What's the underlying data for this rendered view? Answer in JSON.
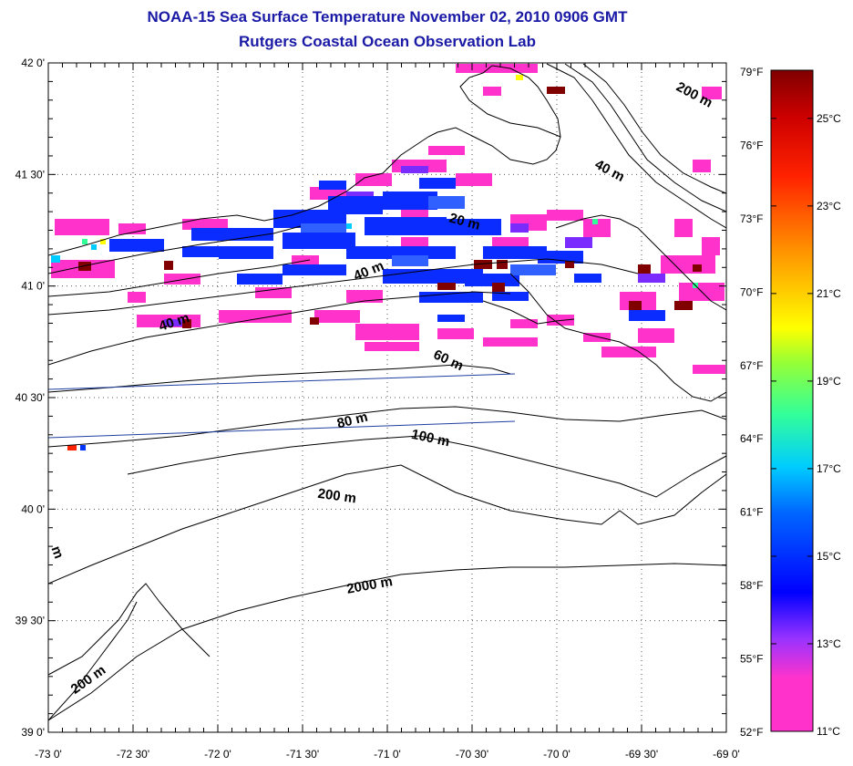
{
  "title": "NOAA-15 Sea Surface Temperature November 02, 2010 0906 GMT",
  "subtitle": "Rutgers Coastal Ocean Observation Lab",
  "map": {
    "lon_range": [
      -73,
      -69
    ],
    "lat_range": [
      39,
      42
    ],
    "lon_ticks": [
      {
        "value": -73.0,
        "label": "-73 0'"
      },
      {
        "value": -72.5,
        "label": "-72 30'"
      },
      {
        "value": -72.0,
        "label": "-72 0'"
      },
      {
        "value": -71.5,
        "label": "-71 30'"
      },
      {
        "value": -71.0,
        "label": "-71 0'"
      },
      {
        "value": -70.5,
        "label": "-70 30'"
      },
      {
        "value": -70.0,
        "label": "-70 0'"
      },
      {
        "value": -69.5,
        "label": "-69 30'"
      },
      {
        "value": -69.0,
        "label": "-69 0'"
      }
    ],
    "lat_ticks": [
      {
        "value": 42.0,
        "label": "42 0'"
      },
      {
        "value": 41.5,
        "label": "41 30'"
      },
      {
        "value": 41.0,
        "label": "41 0'"
      },
      {
        "value": 40.5,
        "label": "40 30'"
      },
      {
        "value": 40.0,
        "label": "40 0'"
      },
      {
        "value": 39.5,
        "label": "39 30'"
      },
      {
        "value": 39.0,
        "label": "39 0'"
      }
    ],
    "fahrenheit_ticks": [
      "79°F",
      "76°F",
      "73°F",
      "70°F",
      "67°F",
      "64°F",
      "61°F",
      "58°F",
      "55°F",
      "52°F"
    ],
    "grid": "dotted",
    "contour_labels": [
      {
        "text": "200 m",
        "lon": -69.2,
        "lat": 41.84
      },
      {
        "text": "40 m",
        "lon": -69.7,
        "lat": 41.5
      },
      {
        "text": "20 m",
        "lon": -70.55,
        "lat": 41.27
      },
      {
        "text": "40 m",
        "lon": -71.1,
        "lat": 41.05
      },
      {
        "text": "40 m",
        "lon": -72.25,
        "lat": 40.82
      },
      {
        "text": "60 m",
        "lon": -70.65,
        "lat": 40.65
      },
      {
        "text": "80 m",
        "lon": -71.2,
        "lat": 40.38
      },
      {
        "text": "100 m",
        "lon": -70.75,
        "lat": 40.3
      },
      {
        "text": "200 m",
        "lon": -71.3,
        "lat": 40.04
      },
      {
        "text": "2000 m",
        "lon": -71.1,
        "lat": 39.64
      },
      {
        "text": "m",
        "lon": -72.97,
        "lat": 39.8
      },
      {
        "text": "200 m",
        "lon": -72.75,
        "lat": 39.22
      }
    ]
  },
  "colorbar": {
    "celsius_labels": [
      "25°C",
      "23°C",
      "21°C",
      "19°C",
      "17°C",
      "15°C",
      "13°C",
      "11°C"
    ],
    "celsius_range": [
      11,
      26.1
    ],
    "colors": [
      "#ff33cc",
      "#ff33cc",
      "#9933ff",
      "#0000ff",
      "#0055ff",
      "#00ccff",
      "#33ff99",
      "#99ff33",
      "#ffff00",
      "#ff9900",
      "#ff3300",
      "#cc0000",
      "#800000"
    ],
    "frame_color": "#000000",
    "coastline_color": "#000000",
    "track_line_color": "#1f3fa0"
  }
}
